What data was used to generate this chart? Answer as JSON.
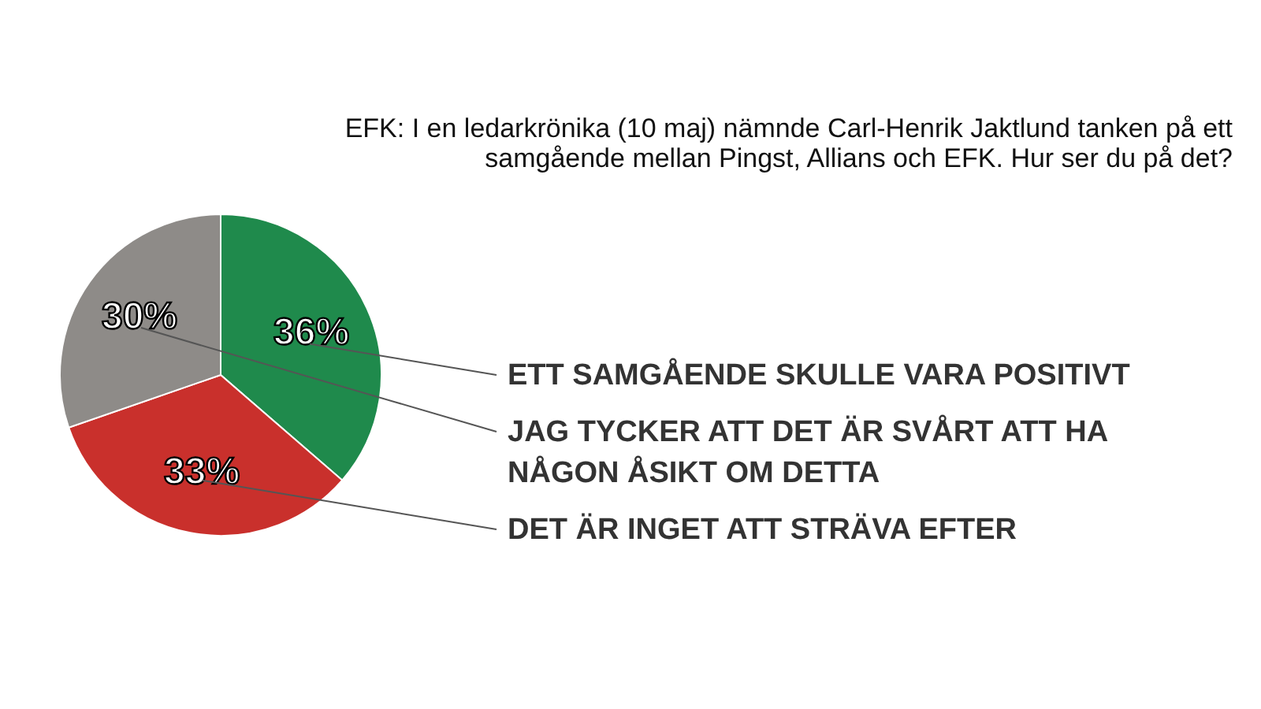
{
  "chart_data": {
    "type": "pie",
    "title": "EFK:  I en ledarkrönika (10 maj) nämnde Carl-Henrik Jaktlund tanken på ett samgående mellan Pingst, Allians och EFK. Hur ser du  på det?",
    "categories": [
      "ETT SAMGÅENDE SKULLE VARA POSITIVT",
      "DET ÄR INGET ATT STRÄVA EFTER",
      "JAG TYCKER  ATT DET ÄR SVÅRT ATT HA NÅGON ÅSIKT OM DETTA"
    ],
    "values": [
      36,
      33,
      30
    ],
    "colors": [
      "#1f8a4c",
      "#c9302c",
      "#8e8b88"
    ],
    "value_labels": [
      "36%",
      "33%",
      "30%"
    ]
  }
}
